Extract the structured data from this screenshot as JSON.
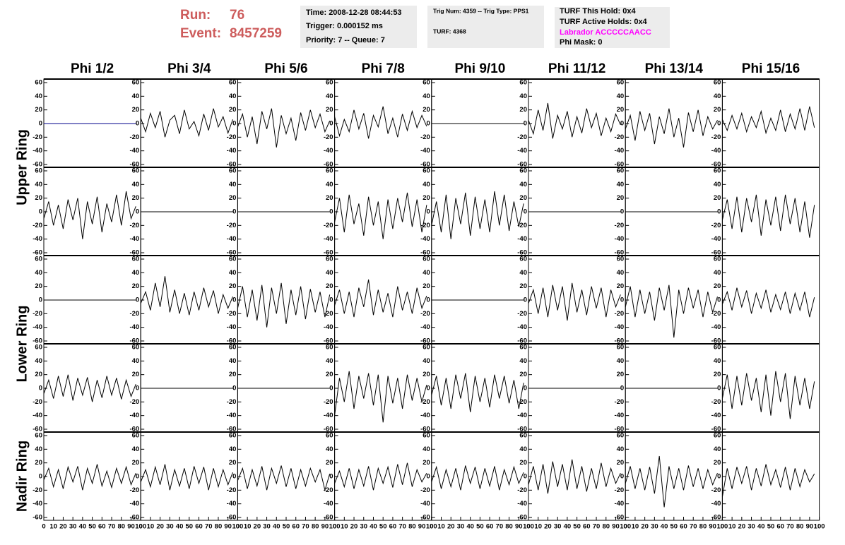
{
  "header": {
    "run_label": "Run:",
    "run": "76",
    "event_label": "Event:",
    "event": "8457259",
    "info_boxes": [
      [
        "Time: 2008-12-28 08:44:53",
        "Trigger: 0.000152 ms",
        "Priority: 7 -- Queue: 7"
      ],
      [
        "Trig Num: 4359 -- Trig Type: PPS1",
        "TURF: 4368"
      ],
      [
        "TURF This Hold: 0x4",
        "TURF Active Holds: 0x4",
        "Labrador ACCCCCAACC",
        "Phi Mask: 0"
      ]
    ]
  },
  "columns": [
    "Phi 1/2",
    "Phi 3/4",
    "Phi 5/6",
    "Phi 7/8",
    "Phi 9/10",
    "Phi 11/12",
    "Phi 13/14",
    "Phi 15/16"
  ],
  "rings": [
    "Upper Ring",
    "Lower Ring",
    "Nadir Ring"
  ],
  "chart_data": {
    "type": "line",
    "color": "#000000",
    "x": [
      0,
      5,
      10,
      15,
      20,
      25,
      30,
      35,
      40,
      45,
      50,
      55,
      60,
      65,
      70,
      75,
      80,
      85,
      90,
      95
    ],
    "xlim": [
      0,
      100
    ],
    "xticks": [
      0,
      10,
      20,
      30,
      40,
      50,
      60,
      70,
      80,
      90,
      100
    ],
    "ylim": [
      -60,
      60
    ],
    "yticks": [
      60,
      40,
      20,
      0,
      -20,
      -40,
      -60
    ],
    "panels": [
      [
        {
          "color": "#00008b",
          "values": [
            0,
            0,
            0,
            0,
            0,
            0,
            0,
            0,
            0,
            0,
            0,
            0,
            0,
            0,
            0,
            0,
            0,
            0,
            0,
            0
          ]
        },
        {
          "values": [
            8,
            -12,
            15,
            -6,
            18,
            -20,
            5,
            12,
            -15,
            20,
            -8,
            3,
            -18,
            14,
            -10,
            22,
            -5,
            10,
            -14,
            6
          ]
        },
        {
          "values": [
            -5,
            14,
            -20,
            10,
            -30,
            18,
            -8,
            22,
            -35,
            12,
            -15,
            8,
            -25,
            16,
            -10,
            20,
            -6,
            14,
            -12,
            4
          ]
        },
        {
          "values": [
            10,
            -18,
            6,
            -12,
            20,
            -8,
            15,
            -22,
            12,
            -5,
            25,
            -15,
            8,
            -20,
            14,
            -10,
            18,
            -6,
            12,
            -4
          ]
        },
        {
          "values": [
            0,
            0,
            0,
            0,
            0,
            0,
            0,
            0,
            0,
            0,
            0,
            0,
            0,
            0,
            0,
            0,
            0,
            0,
            0,
            0
          ]
        },
        {
          "values": [
            5,
            -15,
            20,
            -10,
            30,
            -22,
            12,
            -8,
            18,
            -20,
            10,
            -14,
            22,
            -6,
            15,
            -18,
            8,
            -12,
            14,
            -2
          ]
        },
        {
          "values": [
            -8,
            12,
            -25,
            18,
            -10,
            15,
            -30,
            10,
            -15,
            22,
            -20,
            8,
            -35,
            16,
            -12,
            20,
            -18,
            10,
            -8,
            5
          ]
        },
        {
          "values": [
            6,
            -10,
            12,
            -8,
            15,
            -12,
            10,
            -6,
            18,
            -14,
            8,
            -10,
            20,
            -12,
            14,
            -8,
            22,
            -10,
            25,
            -6
          ]
        }
      ],
      [
        {
          "values": [
            -10,
            15,
            -20,
            10,
            -25,
            18,
            -12,
            20,
            -40,
            15,
            -18,
            22,
            -30,
            12,
            -15,
            25,
            -20,
            30,
            -10,
            8
          ]
        },
        {
          "values": [
            0,
            0,
            0,
            0,
            0,
            0,
            0,
            0,
            0,
            0,
            0,
            0,
            0,
            0,
            0,
            0,
            0,
            0,
            0,
            0
          ]
        },
        {
          "values": [
            0,
            0,
            0,
            0,
            0,
            0,
            0,
            0,
            0,
            0,
            0,
            0,
            0,
            0,
            0,
            0,
            0,
            0,
            0,
            0
          ]
        },
        {
          "values": [
            -15,
            20,
            -30,
            25,
            -18,
            12,
            -35,
            22,
            -20,
            15,
            -40,
            18,
            -25,
            20,
            -15,
            28,
            -22,
            18,
            -30,
            10
          ]
        },
        {
          "values": [
            -20,
            15,
            -30,
            25,
            -40,
            20,
            -18,
            28,
            -35,
            22,
            -25,
            18,
            -30,
            30,
            -20,
            25,
            -28,
            15,
            -22,
            12
          ]
        },
        {
          "values": [
            0,
            0,
            0,
            0,
            0,
            0,
            0,
            0,
            0,
            0,
            0,
            0,
            0,
            0,
            0,
            0,
            0,
            0,
            0,
            0
          ]
        },
        {
          "values": [
            0,
            0,
            0,
            0,
            0,
            0,
            0,
            0,
            0,
            0,
            0,
            0,
            0,
            0,
            0,
            0,
            0,
            0,
            0,
            0
          ]
        },
        {
          "values": [
            -12,
            18,
            -25,
            22,
            -30,
            20,
            -15,
            25,
            -35,
            18,
            -20,
            22,
            -28,
            25,
            -18,
            20,
            -30,
            15,
            -38,
            10
          ]
        }
      ],
      [
        {
          "values": [
            0,
            0,
            0,
            0,
            0,
            0,
            0,
            0,
            0,
            0,
            0,
            0,
            0,
            0,
            0,
            0,
            0,
            0,
            0,
            0
          ]
        },
        {
          "values": [
            -5,
            12,
            -15,
            25,
            -10,
            35,
            -18,
            15,
            -20,
            10,
            -22,
            12,
            -15,
            18,
            -10,
            14,
            -20,
            8,
            -12,
            5
          ]
        },
        {
          "values": [
            -12,
            20,
            -25,
            15,
            -30,
            22,
            -40,
            18,
            -20,
            25,
            -35,
            15,
            -22,
            20,
            -28,
            16,
            -18,
            12,
            -25,
            8
          ]
        },
        {
          "values": [
            -8,
            15,
            -20,
            12,
            -25,
            18,
            -10,
            30,
            -22,
            15,
            -18,
            10,
            -25,
            20,
            -15,
            12,
            -20,
            18,
            -12,
            6
          ]
        },
        {
          "values": [
            0,
            0,
            0,
            0,
            0,
            0,
            0,
            0,
            0,
            0,
            0,
            0,
            0,
            0,
            0,
            0,
            0,
            0,
            0,
            0
          ]
        },
        {
          "values": [
            -5,
            15,
            -20,
            18,
            -25,
            22,
            -15,
            20,
            -30,
            25,
            -18,
            15,
            -22,
            20,
            -12,
            18,
            -25,
            15,
            -10,
            8
          ]
        },
        {
          "values": [
            -10,
            20,
            -25,
            15,
            -20,
            12,
            -30,
            18,
            -15,
            22,
            -55,
            15,
            -20,
            18,
            -12,
            15,
            -25,
            12,
            -18,
            5
          ]
        },
        {
          "values": [
            -6,
            12,
            -15,
            18,
            -10,
            14,
            -20,
            10,
            -12,
            15,
            -18,
            8,
            -14,
            12,
            -20,
            10,
            -15,
            12,
            -25,
            4
          ]
        }
      ],
      [
        {
          "values": [
            -8,
            12,
            -15,
            18,
            -12,
            20,
            -18,
            15,
            -10,
            16,
            -20,
            12,
            -14,
            18,
            -10,
            15,
            -16,
            12,
            -12,
            6
          ]
        },
        {
          "values": [
            0,
            0,
            0,
            0,
            0,
            0,
            0,
            0,
            0,
            0,
            0,
            0,
            0,
            0,
            0,
            0,
            0,
            0,
            0,
            0
          ]
        },
        {
          "values": [
            0,
            0,
            0,
            0,
            0,
            0,
            0,
            0,
            0,
            0,
            0,
            0,
            0,
            0,
            0,
            0,
            0,
            0,
            0,
            0
          ]
        },
        {
          "values": [
            -40,
            15,
            -20,
            25,
            -30,
            18,
            -15,
            22,
            -25,
            20,
            -50,
            18,
            -22,
            15,
            -30,
            20,
            -18,
            15,
            -20,
            5
          ]
        },
        {
          "values": [
            -10,
            18,
            -25,
            15,
            -30,
            20,
            -15,
            22,
            -35,
            18,
            -20,
            15,
            -28,
            20,
            -15,
            18,
            -22,
            12,
            -30,
            8
          ]
        },
        {
          "values": [
            0,
            0,
            0,
            0,
            0,
            0,
            0,
            0,
            0,
            0,
            0,
            0,
            0,
            0,
            0,
            0,
            0,
            0,
            0,
            0
          ]
        },
        {
          "values": [
            0,
            0,
            0,
            0,
            0,
            0,
            0,
            0,
            0,
            0,
            0,
            0,
            0,
            0,
            0,
            0,
            0,
            0,
            0,
            0
          ]
        },
        {
          "values": [
            -15,
            20,
            -30,
            18,
            -25,
            22,
            -18,
            15,
            -35,
            20,
            -40,
            25,
            -20,
            22,
            -45,
            18,
            -25,
            15,
            -30,
            10
          ]
        }
      ],
      [
        {
          "values": [
            -5,
            12,
            -15,
            10,
            -18,
            14,
            -8,
            15,
            -20,
            12,
            -10,
            18,
            -14,
            8,
            -16,
            12,
            -10,
            14,
            -12,
            5
          ]
        },
        {
          "values": [
            -8,
            10,
            -15,
            14,
            -12,
            18,
            -20,
            10,
            -14,
            12,
            -18,
            15,
            -10,
            14,
            -20,
            12,
            -15,
            10,
            -12,
            6
          ]
        },
        {
          "values": [
            -6,
            12,
            -18,
            10,
            -14,
            15,
            -20,
            12,
            -10,
            16,
            -15,
            12,
            -18,
            10,
            -14,
            12,
            -8,
            10,
            -20,
            4
          ]
        },
        {
          "values": [
            -10,
            8,
            -15,
            12,
            -18,
            10,
            -14,
            15,
            -20,
            12,
            -10,
            14,
            -16,
            18,
            -12,
            20,
            -15,
            10,
            -8,
            5
          ]
        },
        {
          "values": [
            -8,
            14,
            -18,
            10,
            -15,
            12,
            -20,
            16,
            -10,
            14,
            -18,
            12,
            -14,
            15,
            -20,
            10,
            -12,
            14,
            -10,
            6
          ]
        },
        {
          "values": [
            -12,
            15,
            -20,
            18,
            -25,
            22,
            -15,
            18,
            -20,
            25,
            -18,
            15,
            -22,
            12,
            -18,
            20,
            -15,
            12,
            -10,
            5
          ]
        },
        {
          "values": [
            -10,
            15,
            -18,
            12,
            -20,
            14,
            -25,
            30,
            -45,
            15,
            -18,
            12,
            -20,
            16,
            -15,
            12,
            -18,
            10,
            -12,
            5
          ]
        },
        {
          "values": [
            -30,
            12,
            -18,
            14,
            -10,
            15,
            -20,
            12,
            -14,
            18,
            -12,
            10,
            -16,
            14,
            -20,
            12,
            -15,
            10,
            -8,
            4
          ]
        }
      ]
    ]
  }
}
